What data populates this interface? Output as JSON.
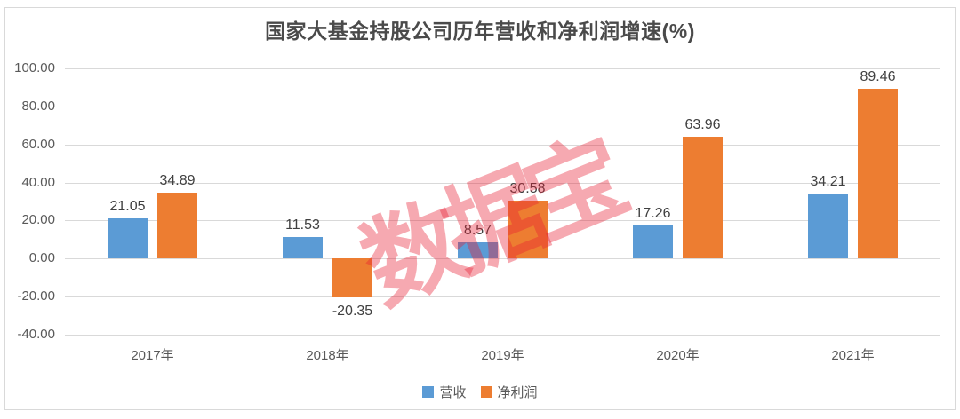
{
  "chart_data": {
    "type": "bar",
    "title": "国家大基金持股公司历年营收和净利润增速(%)",
    "categories": [
      "2017年",
      "2018年",
      "2019年",
      "2020年",
      "2021年"
    ],
    "series": [
      {
        "key": "revenue",
        "name": "营收",
        "color": "#5B9BD5",
        "values": [
          21.05,
          11.53,
          8.57,
          17.26,
          34.21
        ]
      },
      {
        "key": "profit",
        "name": "净利润",
        "color": "#ED7D31",
        "values": [
          34.89,
          -20.35,
          30.58,
          63.96,
          89.46
        ]
      }
    ],
    "ylim": [
      -40,
      100
    ],
    "ytick_step": 20,
    "ytick_labels": [
      "100.00",
      "80.00",
      "60.00",
      "40.00",
      "20.00",
      "0.00",
      "-20.00",
      "-40.00"
    ],
    "value_label_decimals": 2,
    "grid": true,
    "legend_position": "bottom",
    "watermark": "数据宝",
    "colors": {
      "gridline": "#D9D9D9",
      "frame_border": "#D9D9D9",
      "title_text": "#4A4A4A",
      "axis_text": "#595959",
      "value_label_text": "#404040",
      "watermark": "rgba(232,30,50,0.38)"
    }
  }
}
